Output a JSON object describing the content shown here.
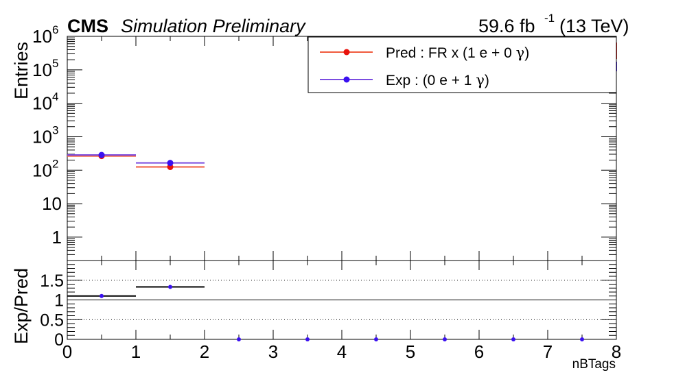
{
  "header": {
    "cms_label": "CMS",
    "extra_label": "Simulation Preliminary",
    "lumi_value": "59.6 fb",
    "lumi_exp": "-1",
    "lumi_energy": "(13 TeV)"
  },
  "colors": {
    "pred": "#f05a3c",
    "pred_marker": "#e8120c",
    "exp": "#7b4de0",
    "exp_marker": "#3a10f0",
    "ratio_line": "#000000",
    "frame": "#000000"
  },
  "chart_data": [
    {
      "type": "scatter",
      "panel": "upper",
      "ylabel": "Entries",
      "y_scale": "log",
      "ylim": [
        0.2,
        1000000
      ],
      "xlim": [
        0,
        8
      ],
      "y_tick_labels": [
        "1",
        "10",
        "10^2",
        "10^3",
        "10^4",
        "10^5",
        "10^6"
      ],
      "legend": {
        "placement": "top-right",
        "entries": [
          {
            "label_main": "Pred : FR x (1 e + 0 ",
            "symbol": "γ",
            "label_end": ")",
            "series": "pred"
          },
          {
            "label_main": "Exp : (0 e + 1 ",
            "symbol": "γ",
            "label_end": ")",
            "series": "exp"
          }
        ]
      },
      "series": [
        {
          "key": "pred",
          "points": [
            {
              "x_low": 0,
              "x_high": 1,
              "y": 265
            },
            {
              "x_low": 1,
              "x_high": 2,
              "y": 125
            }
          ]
        },
        {
          "key": "exp",
          "points": [
            {
              "x_low": 0,
              "x_high": 1,
              "y": 285
            },
            {
              "x_low": 1,
              "x_high": 2,
              "y": 165
            }
          ]
        }
      ]
    },
    {
      "type": "scatter",
      "panel": "lower",
      "ylabel": "Exp/Pred",
      "xlabel": "nBTags",
      "ylim": [
        0,
        2
      ],
      "xlim": [
        0,
        8
      ],
      "y_ticks": [
        "0",
        "0.5",
        "1",
        "1.5"
      ],
      "x_ticks": [
        "0",
        "1",
        "2",
        "3",
        "4",
        "5",
        "6",
        "7",
        "8"
      ],
      "reference_lines": [
        1.0
      ],
      "dotted_lines": [
        0.5,
        1.5
      ],
      "points": [
        {
          "x": 0.5,
          "y": 1.1,
          "x_low": 0,
          "x_high": 1
        },
        {
          "x": 1.5,
          "y": 1.33,
          "x_low": 1,
          "x_high": 2
        },
        {
          "x": 2.5,
          "y": 0
        },
        {
          "x": 3.5,
          "y": 0
        },
        {
          "x": 4.5,
          "y": 0
        },
        {
          "x": 5.5,
          "y": 0
        },
        {
          "x": 6.5,
          "y": 0
        },
        {
          "x": 7.5,
          "y": 0
        }
      ]
    }
  ]
}
